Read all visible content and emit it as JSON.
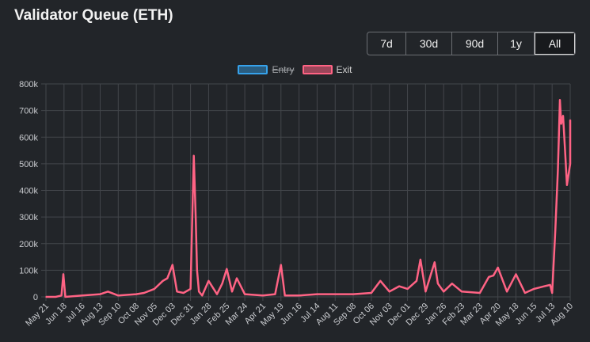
{
  "title": "Validator Queue (ETH)",
  "range_buttons": [
    "7d",
    "30d",
    "90d",
    "1y",
    "All"
  ],
  "active_range": "All",
  "colors": {
    "entry": "#36a2eb",
    "exit": "#ff6384",
    "background": "#222529",
    "grid": "#43464b"
  },
  "chart_data": {
    "type": "line",
    "legend": [
      {
        "name": "Entry",
        "color": "#36a2eb",
        "hidden": true
      },
      {
        "name": "Exit",
        "color": "#ff6384",
        "hidden": false
      }
    ],
    "legend_position": "top",
    "grid": true,
    "ylim": [
      0,
      800000
    ],
    "yticks": [
      "0",
      "100k",
      "200k",
      "300k",
      "400k",
      "500k",
      "600k",
      "700k",
      "800k"
    ],
    "xticks": [
      "May 21",
      "Jun 18",
      "Jul 16",
      "Aug 13",
      "Sep 10",
      "Oct 08",
      "Nov 05",
      "Dec 03",
      "Dec 31",
      "Jan 28",
      "Feb 25",
      "Mar 24",
      "Apr 21",
      "May 19",
      "Jun 16",
      "Jul 14",
      "Aug 11",
      "Sep 08",
      "Oct 06",
      "Nov 03",
      "Dec 01",
      "Dec 29",
      "Jan 26",
      "Feb 23",
      "Mar 23",
      "Apr 20",
      "May 18",
      "Jun 15",
      "Jul 13",
      "Aug 10"
    ],
    "series": [
      {
        "name": "Exit",
        "x": [
          "May 21",
          "Jun 05",
          "Jun 14",
          "Jun 17",
          "Jun 20",
          "Jul 16",
          "Aug 13",
          "Aug 25",
          "Sep 10",
          "Oct 08",
          "Oct 20",
          "Nov 05",
          "Nov 18",
          "Nov 25",
          "Dec 03",
          "Dec 10",
          "Dec 20",
          "Dec 31",
          "Jan 05",
          "Jan 08",
          "Jan 10",
          "Jan 13",
          "Jan 18",
          "Jan 28",
          "Feb 10",
          "Feb 18",
          "Feb 25",
          "Mar 05",
          "Mar 12",
          "Mar 24",
          "Apr 21",
          "May 10",
          "May 19",
          "May 25",
          "Jun 16",
          "Jul 14",
          "Aug 11",
          "Sep 08",
          "Oct 06",
          "Oct 20",
          "Nov 03",
          "Nov 18",
          "Dec 01",
          "Dec 15",
          "Dec 21",
          "Dec 29",
          "Jan 12",
          "Jan 17",
          "Jan 26",
          "Feb 08",
          "Feb 23",
          "Mar 23",
          "Apr 06",
          "Apr 13",
          "Apr 20",
          "May 04",
          "May 18",
          "Jun 01",
          "Jun 15",
          "Jul 01",
          "Jul 10",
          "Jul 13",
          "Jul 18",
          "Jul 22",
          "Jul 25",
          "Jul 27",
          "Jul 30",
          "Aug 02",
          "Aug 05",
          "Aug 08",
          "Aug 10",
          "Aug 12"
        ],
        "values": [
          0,
          0,
          5000,
          85000,
          0,
          5000,
          10000,
          20000,
          5000,
          10000,
          15000,
          30000,
          60000,
          70000,
          120000,
          20000,
          15000,
          30000,
          530000,
          300000,
          100000,
          20000,
          5000,
          60000,
          10000,
          50000,
          105000,
          20000,
          70000,
          10000,
          5000,
          10000,
          120000,
          5000,
          5000,
          10000,
          10000,
          10000,
          15000,
          60000,
          20000,
          40000,
          30000,
          60000,
          140000,
          20000,
          130000,
          50000,
          20000,
          50000,
          20000,
          15000,
          75000,
          80000,
          110000,
          20000,
          85000,
          15000,
          30000,
          40000,
          45000,
          15000,
          250000,
          480000,
          740000,
          650000,
          680000,
          550000,
          420000,
          470000,
          500000,
          665000
        ]
      }
    ]
  }
}
